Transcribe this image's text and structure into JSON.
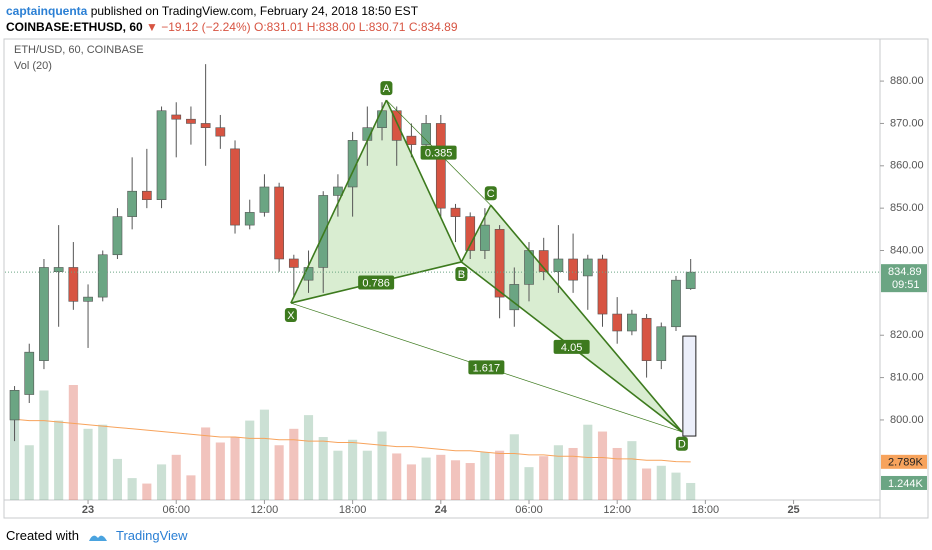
{
  "header": {
    "author": "captainquenta",
    "published": "published on TradingView.com, February 24, 2018 18:50 EST",
    "symbol": "COINBASE:ETHUSD, 60",
    "change": "▼ −19.12 (−2.24%)",
    "open": "O:831.01",
    "high": "H:838.00",
    "low": "L:830.71",
    "close": "C:834.89"
  },
  "footer": {
    "created": "Created with",
    "brand": "TradingView"
  },
  "chart_data": {
    "type": "candlestick",
    "title": "ETH/USD, 60, COINBASE",
    "subtitle": "Vol (20)",
    "x": [
      -5,
      -4,
      -3,
      -2,
      -1,
      0,
      1,
      2,
      3,
      4,
      5,
      6,
      7,
      8,
      9,
      10,
      11,
      12,
      13,
      14,
      15,
      16,
      17,
      18,
      19,
      20,
      21,
      22,
      23,
      24,
      25,
      26,
      27,
      28,
      29,
      30,
      31,
      32,
      33,
      34,
      35,
      36,
      37,
      38,
      39,
      40,
      41
    ],
    "open": [
      800,
      806,
      814,
      835,
      836,
      828,
      829,
      839,
      848,
      854,
      852,
      872,
      871,
      870,
      869,
      864,
      846,
      849,
      855,
      838,
      833,
      836,
      853,
      855,
      866,
      869,
      873,
      867,
      865,
      870,
      850,
      848,
      840,
      845,
      826,
      832,
      840,
      835,
      838,
      834,
      838,
      825,
      821,
      824,
      814,
      822,
      831
    ],
    "high": [
      808,
      818,
      838,
      846,
      842,
      832,
      840,
      850,
      862,
      864,
      874,
      875,
      874,
      884,
      872,
      866,
      852,
      858,
      856,
      839,
      840,
      854,
      858,
      868,
      874,
      875,
      874,
      870,
      872,
      872,
      851,
      849,
      850,
      846,
      836,
      842,
      843,
      846,
      844,
      839,
      839,
      829,
      826,
      825,
      823,
      834,
      838
    ],
    "low": [
      795,
      804,
      812,
      822,
      826,
      817,
      828,
      838,
      845,
      850,
      850,
      862,
      865,
      860,
      864,
      844,
      845,
      848,
      835,
      829,
      830,
      830,
      848,
      848,
      860,
      866,
      860,
      862,
      864,
      848,
      842,
      838,
      838,
      824,
      822,
      828,
      833,
      830,
      830,
      826,
      822,
      818,
      820,
      810,
      812,
      821,
      830.71
    ],
    "close": [
      807,
      816,
      836,
      836,
      828,
      829,
      839,
      848,
      854,
      852,
      873,
      871,
      870,
      869,
      867,
      846,
      849,
      855,
      838,
      836,
      836,
      853,
      855,
      866,
      869,
      873,
      866,
      865,
      870,
      850,
      848,
      840,
      846,
      829,
      832,
      840,
      835,
      838,
      833,
      838,
      825,
      821,
      825,
      814,
      822,
      833,
      834.89
    ],
    "volume": [
      6.6,
      4.0,
      8.0,
      5.8,
      8.4,
      5.2,
      5.5,
      3.0,
      1.6,
      1.2,
      2.6,
      3.3,
      1.8,
      5.3,
      4.2,
      4.6,
      5.8,
      6.6,
      4.0,
      5.2,
      6.2,
      4.6,
      3.6,
      4.4,
      3.6,
      5.0,
      3.4,
      2.6,
      3.1,
      3.3,
      2.9,
      2.7,
      3.5,
      3.6,
      4.8,
      2.4,
      3.2,
      4.0,
      3.8,
      5.5,
      5.0,
      3.8,
      4.3,
      2.3,
      2.5,
      2.0,
      1.244
    ],
    "volume_ma": [
      5.9,
      5.8,
      5.8,
      5.7,
      5.6,
      5.5,
      5.4,
      5.3,
      5.2,
      5.1,
      5.0,
      4.9,
      4.8,
      4.7,
      4.6,
      4.6,
      4.5,
      4.5,
      4.4,
      4.4,
      4.3,
      4.3,
      4.2,
      4.2,
      4.1,
      4.0,
      3.9,
      3.9,
      3.8,
      3.7,
      3.6,
      3.6,
      3.5,
      3.4,
      3.4,
      3.3,
      3.3,
      3.2,
      3.2,
      3.1,
      3.1,
      3.0,
      3.0,
      2.9,
      2.9,
      2.8,
      2.789
    ],
    "volume_label": "1.244K",
    "volume_ma_label": "2.789K",
    "up_color": "#6ba583",
    "down_color": "#d75442",
    "ma_color": "#f7a35c",
    "pattern_color": "#3d7a1e",
    "last_price": 834.89,
    "last_price_label": "834.89",
    "countdown": "09:51",
    "xlim": [
      -5.65,
      53.88
    ],
    "ylim": [
      781.1,
      889.7
    ],
    "vol_ylim": [
      0,
      33.6
    ],
    "xticks": [
      {
        "value": 0,
        "label": "23"
      },
      {
        "value": 6,
        "label": "06:00"
      },
      {
        "value": 12,
        "label": "12:00"
      },
      {
        "value": 18,
        "label": "18:00"
      },
      {
        "value": 24,
        "label": "24"
      },
      {
        "value": 30,
        "label": "06:00"
      },
      {
        "value": 36,
        "label": "12:00"
      },
      {
        "value": 42,
        "label": "18:00"
      },
      {
        "value": 48,
        "label": "25"
      }
    ],
    "yticks": [
      {
        "value": 800,
        "label": "800.00"
      },
      {
        "value": 810,
        "label": "810.00"
      },
      {
        "value": 820,
        "label": "820.00"
      },
      {
        "value": 840,
        "label": "840.00"
      },
      {
        "value": 850,
        "label": "850.00"
      },
      {
        "value": 860,
        "label": "860.00"
      },
      {
        "value": 870,
        "label": "870.00"
      },
      {
        "value": 880,
        "label": "880.00"
      }
    ],
    "pattern": {
      "points": [
        {
          "label": "X",
          "x": 13.8,
          "y": 827.6
        },
        {
          "label": "A",
          "x": 20.3,
          "y": 875.5
        },
        {
          "label": "B",
          "x": 25.4,
          "y": 837.3
        },
        {
          "label": "C",
          "x": 27.4,
          "y": 850.7
        },
        {
          "label": "D",
          "x": 40.4,
          "y": 797.2
        }
      ],
      "ratios": [
        {
          "label": "0.786",
          "from": 0,
          "to": 2
        },
        {
          "label": "0.385",
          "from": 1,
          "to": 3
        },
        {
          "label": "4.05",
          "from": 2,
          "to": 4
        },
        {
          "label": "1.617",
          "from": 0,
          "to": 4
        }
      ]
    }
  }
}
